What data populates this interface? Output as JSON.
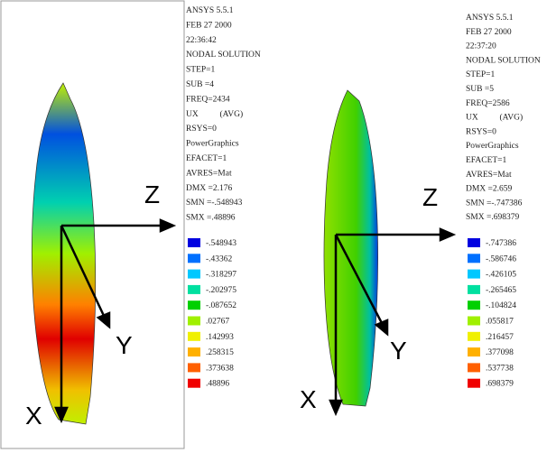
{
  "panels": [
    {
      "info_lines": [
        "ANSYS 5.5.1",
        "FEB 27 2000",
        "22:36:42",
        "NODAL SOLUTION",
        "STEP=1",
        "SUB =4",
        "FREQ=2434",
        "UX          (AVG)",
        "RSYS=0",
        "PowerGraphics",
        "EFACET=1",
        "AVRES=Mat",
        "DMX =2.176",
        "SMN =-.548943",
        "SMX =.48896"
      ],
      "legend_labels": [
        "-.548943",
        "-.43362",
        "-.318297",
        "-.202975",
        "-.087652",
        ".02767",
        ".142993",
        ".258315",
        ".373638",
        ".48896"
      ],
      "axes": {
        "z": "Z",
        "y": "Y",
        "x": "X"
      }
    },
    {
      "info_lines": [
        "ANSYS 5.5.1",
        "FEB 27 2000",
        "22:37:20",
        "NODAL SOLUTION",
        "STEP=1",
        "SUB =5",
        "FREQ=2586",
        "UX          (AVG)",
        "RSYS=0",
        "PowerGraphics",
        "EFACET=1",
        "AVRES=Mat",
        "DMX =2.659",
        "SMN =-.747386",
        "SMX =.698379"
      ],
      "legend_labels": [
        "-.747386",
        "-.586746",
        "-.426105",
        "-.265465",
        "-.104824",
        ".055817",
        ".216457",
        ".377098",
        ".537738",
        ".698379"
      ],
      "axes": {
        "z": "Z",
        "y": "Y",
        "x": "X"
      }
    }
  ],
  "legend_colors": [
    "#0000e0",
    "#0070ff",
    "#00c8ff",
    "#00e0a0",
    "#00d000",
    "#a0f000",
    "#f0f000",
    "#ffb000",
    "#ff6000",
    "#f00000"
  ]
}
